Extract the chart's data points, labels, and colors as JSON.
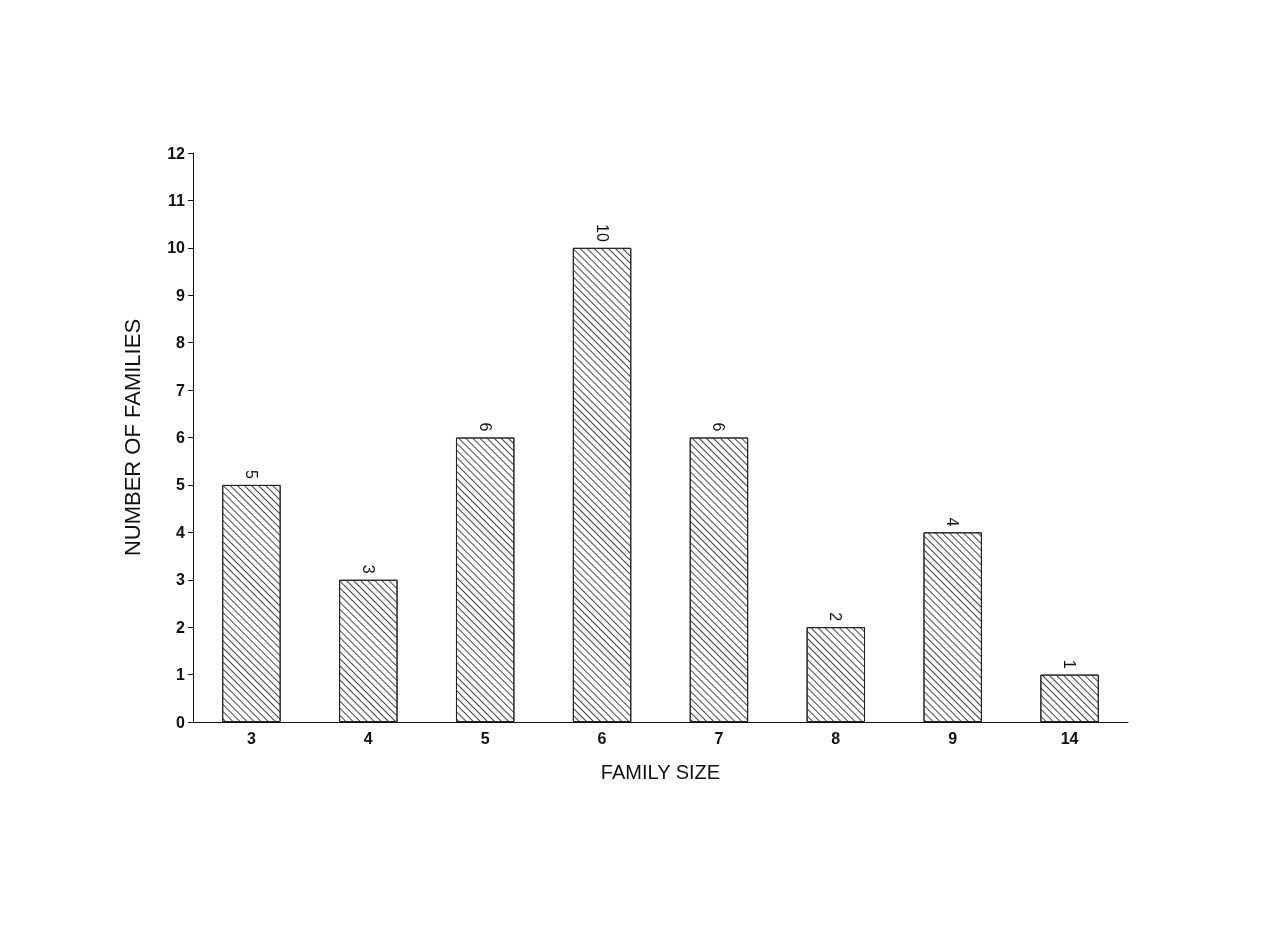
{
  "chart_data": {
    "type": "bar",
    "xlabel": "FAMILY SIZE",
    "ylabel": "NUMBER OF FAMILIES",
    "categories": [
      "3",
      "4",
      "5",
      "6",
      "7",
      "8",
      "9",
      "14"
    ],
    "values": [
      5,
      3,
      6,
      10,
      6,
      2,
      4,
      1
    ],
    "color": "#ffffff",
    "ylim": [
      0,
      12
    ],
    "yticks": [
      0,
      1,
      2,
      3,
      4,
      5,
      6,
      7,
      8,
      9,
      10,
      11,
      12
    ],
    "data_labels": true,
    "grid": false
  }
}
